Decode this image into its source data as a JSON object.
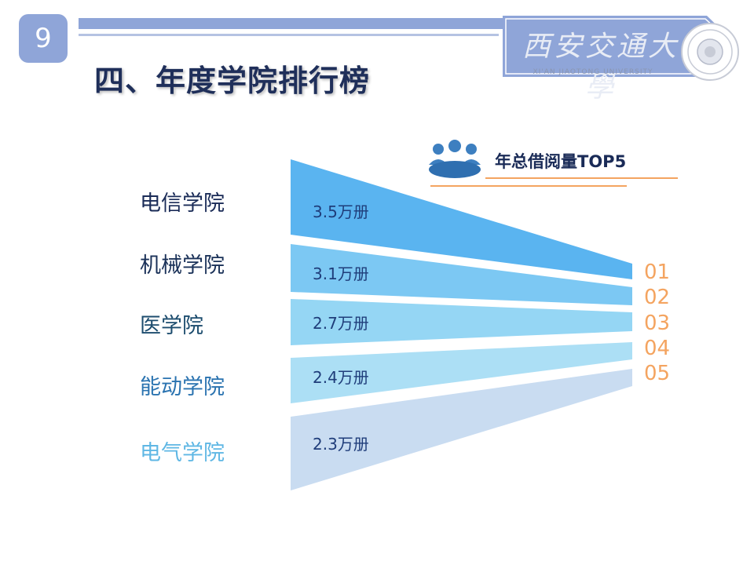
{
  "page": {
    "slide_number": "9",
    "title": "四、年度学院排行榜"
  },
  "logo": {
    "cn_text": "西安交通大學",
    "en_text": "XI'AN JIAOTONG UNIVERSITY"
  },
  "section": {
    "label": "年总借阅量TOP5",
    "icon": "people-group-icon"
  },
  "ranking": [
    {
      "college": "电信学院",
      "value": "3.5万册",
      "rank": "01",
      "color": "#5ab4f0",
      "label_color": "#1a2b57"
    },
    {
      "college": "机械学院",
      "value": "3.1万册",
      "rank": "02",
      "color": "#7cc8f3",
      "label_color": "#1a3158"
    },
    {
      "college": "医学院",
      "value": "2.7万册",
      "rank": "03",
      "color": "#95d6f4",
      "label_color": "#1c4c6e"
    },
    {
      "college": "能动学院",
      "value": "2.4万册",
      "rank": "04",
      "color": "#acdff5",
      "label_color": "#2a73b0"
    },
    {
      "college": "电气学院",
      "value": "2.3万册",
      "rank": "05",
      "color": "#c9dcf1",
      "label_color": "#5fb7e4"
    }
  ],
  "colors": {
    "accent_orange": "#f4a460",
    "badge": "#8fa5d8",
    "title": "#1f2f5a"
  }
}
